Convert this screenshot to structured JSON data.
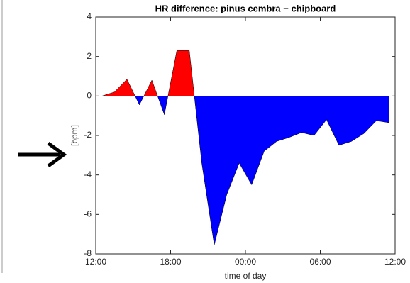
{
  "chart_data": {
    "type": "area",
    "title": "HR difference: pinus cembra − chipboard",
    "xlabel": "time of day",
    "ylabel": "[bpm]",
    "x": [
      0.5,
      1.5,
      2.5,
      3.5,
      4.5,
      5.5,
      6.5,
      7.5,
      8.5,
      9.5,
      10.5,
      11.5,
      12.5,
      13.5,
      14.5,
      15.5,
      16.5,
      17.5,
      18.5,
      19.5,
      20.5,
      21.5,
      22.5,
      23.5
    ],
    "series": [
      {
        "positive_color": "#ff0000",
        "negative_color": "#0000ff",
        "values": [
          0,
          0.2,
          0.85,
          -0.45,
          0.8,
          -0.95,
          2.3,
          2.3,
          -3.4,
          -7.55,
          -5.0,
          -3.4,
          -4.5,
          -2.8,
          -2.3,
          -2.1,
          -1.85,
          -2.0,
          -1.2,
          -2.5,
          -2.3,
          -1.9,
          -1.25,
          -1.35
        ]
      }
    ],
    "xlim": [
      0,
      24
    ],
    "xticks": [
      {
        "value": 0,
        "label": "12:00"
      },
      {
        "value": 6,
        "label": "18:00"
      },
      {
        "value": 12,
        "label": "00:00"
      },
      {
        "value": 18,
        "label": "06:00"
      },
      {
        "value": 24,
        "label": "12:00"
      }
    ],
    "ylim": [
      -8,
      4
    ],
    "yticks": [
      -8,
      -6,
      -4,
      -2,
      0,
      2,
      4
    ]
  }
}
